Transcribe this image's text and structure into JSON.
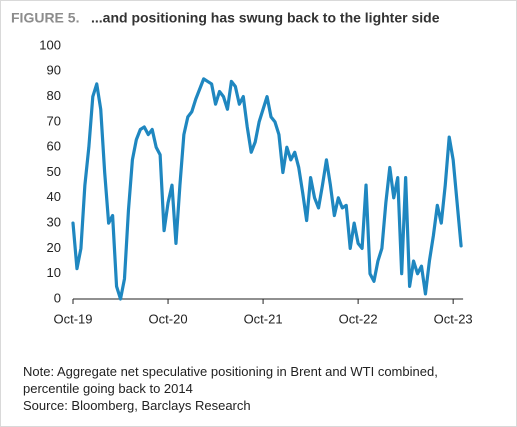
{
  "chart_data": {
    "type": "line",
    "figure_label": "FIGURE 5.",
    "title": "...and positioning has swung back to the lighter side",
    "note": "Note: Aggregate net speculative positioning in Brent and WTI combined, percentile going back to 2014",
    "source": "Source: Bloomberg, Barclays Research",
    "color": "#1f87c0",
    "categories": [
      "Oct-19",
      null,
      null,
      null,
      null,
      null,
      null,
      null,
      null,
      null,
      null,
      null,
      null,
      null,
      null,
      null,
      null,
      null,
      null,
      null,
      null,
      null,
      null,
      null,
      "Oct-20",
      null,
      null,
      null,
      null,
      null,
      null,
      null,
      null,
      null,
      null,
      null,
      null,
      null,
      null,
      null,
      null,
      null,
      null,
      null,
      null,
      null,
      null,
      null,
      "Oct-21",
      null,
      null,
      null,
      null,
      null,
      null,
      null,
      null,
      null,
      null,
      null,
      null,
      null,
      null,
      null,
      null,
      null,
      null,
      null,
      null,
      null,
      null,
      null,
      "Oct-22",
      null,
      null,
      null,
      null,
      null,
      null,
      null,
      null,
      null,
      null,
      null,
      null,
      null,
      null,
      null,
      null,
      null,
      null,
      null,
      null,
      null,
      null,
      null,
      "Oct-23",
      null,
      null
    ],
    "values": [
      30,
      12,
      20,
      45,
      60,
      80,
      85,
      75,
      50,
      30,
      33,
      5,
      0,
      8,
      35,
      55,
      63,
      67,
      68,
      65,
      67,
      60,
      57,
      27,
      38,
      45,
      22,
      45,
      65,
      72,
      74,
      79,
      83,
      87,
      86,
      85,
      77,
      82,
      80,
      75,
      86,
      84,
      77,
      80,
      68,
      58,
      62,
      70,
      75,
      80,
      72,
      70,
      65,
      50,
      60,
      55,
      58,
      52,
      42,
      31,
      48,
      40,
      36,
      45,
      55,
      45,
      33,
      40,
      36,
      37,
      20,
      30,
      22,
      20,
      45,
      10,
      7,
      15,
      20,
      38,
      52,
      40,
      48,
      10,
      48,
      5,
      15,
      10,
      13,
      2,
      15,
      25,
      37,
      30,
      45,
      64,
      55,
      38,
      21
    ],
    "ylim": [
      0,
      100
    ],
    "yticks": [
      0,
      10,
      20,
      30,
      40,
      50,
      60,
      70,
      80,
      90,
      100
    ],
    "grid": false
  }
}
